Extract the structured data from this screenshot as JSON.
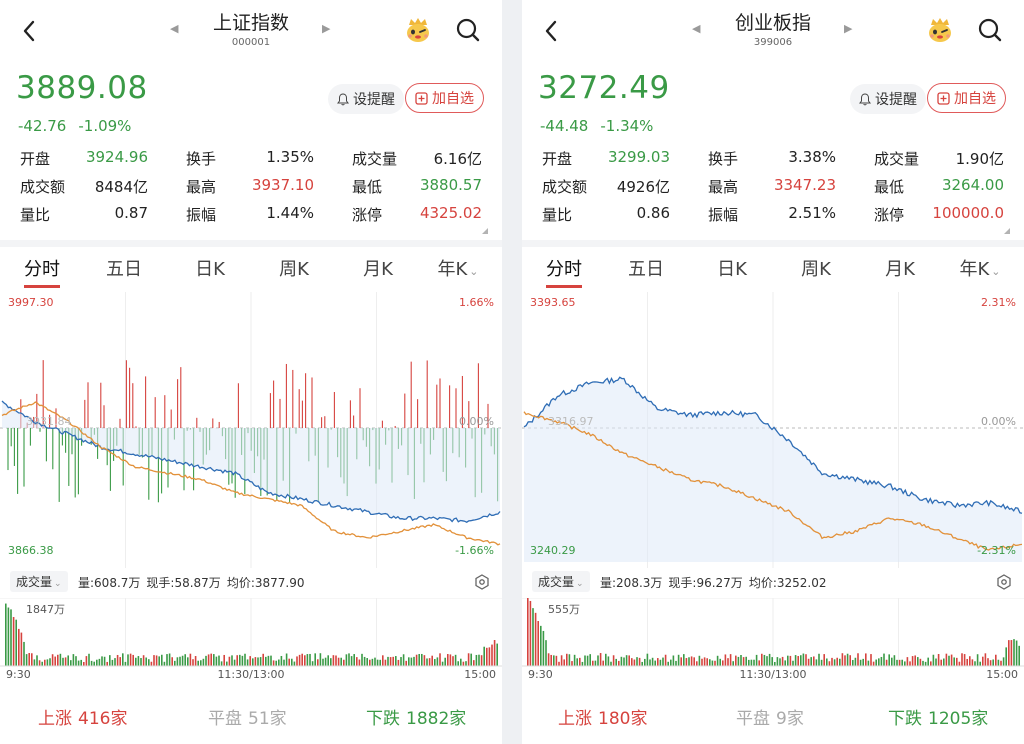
{
  "panels": [
    {
      "name": "上证指数",
      "code": "000001",
      "price": "3889.08",
      "change": "-42.76",
      "change_pct": "-1.09%",
      "alert_label": "设提醒",
      "add_label": "加自选",
      "stats": [
        [
          {
            "label": "开盘",
            "value": "3924.96",
            "color": "green"
          },
          {
            "label": "换手",
            "value": "1.35%",
            "color": "dark"
          },
          {
            "label": "成交量",
            "value": "6.16亿",
            "color": "dark"
          }
        ],
        [
          {
            "label": "成交额",
            "value": "8484亿",
            "color": "dark"
          },
          {
            "label": "最高",
            "value": "3937.10",
            "color": "red"
          },
          {
            "label": "最低",
            "value": "3880.57",
            "color": "green"
          }
        ],
        [
          {
            "label": "量比",
            "value": "0.87",
            "color": "dark"
          },
          {
            "label": "振幅",
            "value": "1.44%",
            "color": "dark"
          },
          {
            "label": "涨停",
            "value": "4325.02",
            "color": "red"
          }
        ]
      ],
      "tabs": [
        "分时",
        "五日",
        "日K",
        "周K",
        "月K",
        "年K"
      ],
      "chart": {
        "y_top": "3997.30",
        "y_bottom": "3866.38",
        "pct_top": "1.66%",
        "pct_mid": "0.00%",
        "pct_bottom": "-1.66%",
        "prev_close": "3931.84"
      },
      "volume": {
        "dropdown": "成交量",
        "vol": "量:608.7万",
        "now": "现手:58.87万",
        "avg": "均价:3877.90",
        "max": "1847万"
      },
      "time_labels": [
        "9:30",
        "11:30/13:00",
        "15:00"
      ],
      "breadth": {
        "up_label": "上涨",
        "up": "416家",
        "flat_label": "平盘",
        "flat": "51家",
        "down_label": "下跌",
        "down": "1882家"
      }
    },
    {
      "name": "创业板指",
      "code": "399006",
      "price": "3272.49",
      "change": "-44.48",
      "change_pct": "-1.34%",
      "alert_label": "设提醒",
      "add_label": "加自选",
      "stats": [
        [
          {
            "label": "开盘",
            "value": "3299.03",
            "color": "green"
          },
          {
            "label": "换手",
            "value": "3.38%",
            "color": "dark"
          },
          {
            "label": "成交量",
            "value": "1.90亿",
            "color": "dark"
          }
        ],
        [
          {
            "label": "成交额",
            "value": "4926亿",
            "color": "dark"
          },
          {
            "label": "最高",
            "value": "3347.23",
            "color": "red"
          },
          {
            "label": "最低",
            "value": "3264.00",
            "color": "green"
          }
        ],
        [
          {
            "label": "量比",
            "value": "0.86",
            "color": "dark"
          },
          {
            "label": "振幅",
            "value": "2.51%",
            "color": "dark"
          },
          {
            "label": "涨停",
            "value": "100000.0",
            "color": "red"
          }
        ]
      ],
      "tabs": [
        "分时",
        "五日",
        "日K",
        "周K",
        "月K",
        "年K"
      ],
      "chart": {
        "y_top": "3393.65",
        "y_bottom": "3240.29",
        "pct_top": "2.31%",
        "pct_mid": "0.00%",
        "pct_bottom": "-2.31%",
        "prev_close": "3316.97"
      },
      "volume": {
        "dropdown": "成交量",
        "vol": "量:208.3万",
        "now": "现手:96.27万",
        "avg": "均价:3252.02",
        "max": "555万"
      },
      "time_labels": [
        "9:30",
        "11:30/13:00",
        "15:00"
      ],
      "breadth": {
        "up_label": "上涨",
        "up": "180家",
        "flat_label": "平盘",
        "flat": "9家",
        "down_label": "下跌",
        "down": "1205家"
      }
    }
  ],
  "colors": {
    "up": "#d6433e",
    "down": "#3a9a46",
    "price_line": "#2f6db5",
    "avg_line": "#e2913a"
  }
}
